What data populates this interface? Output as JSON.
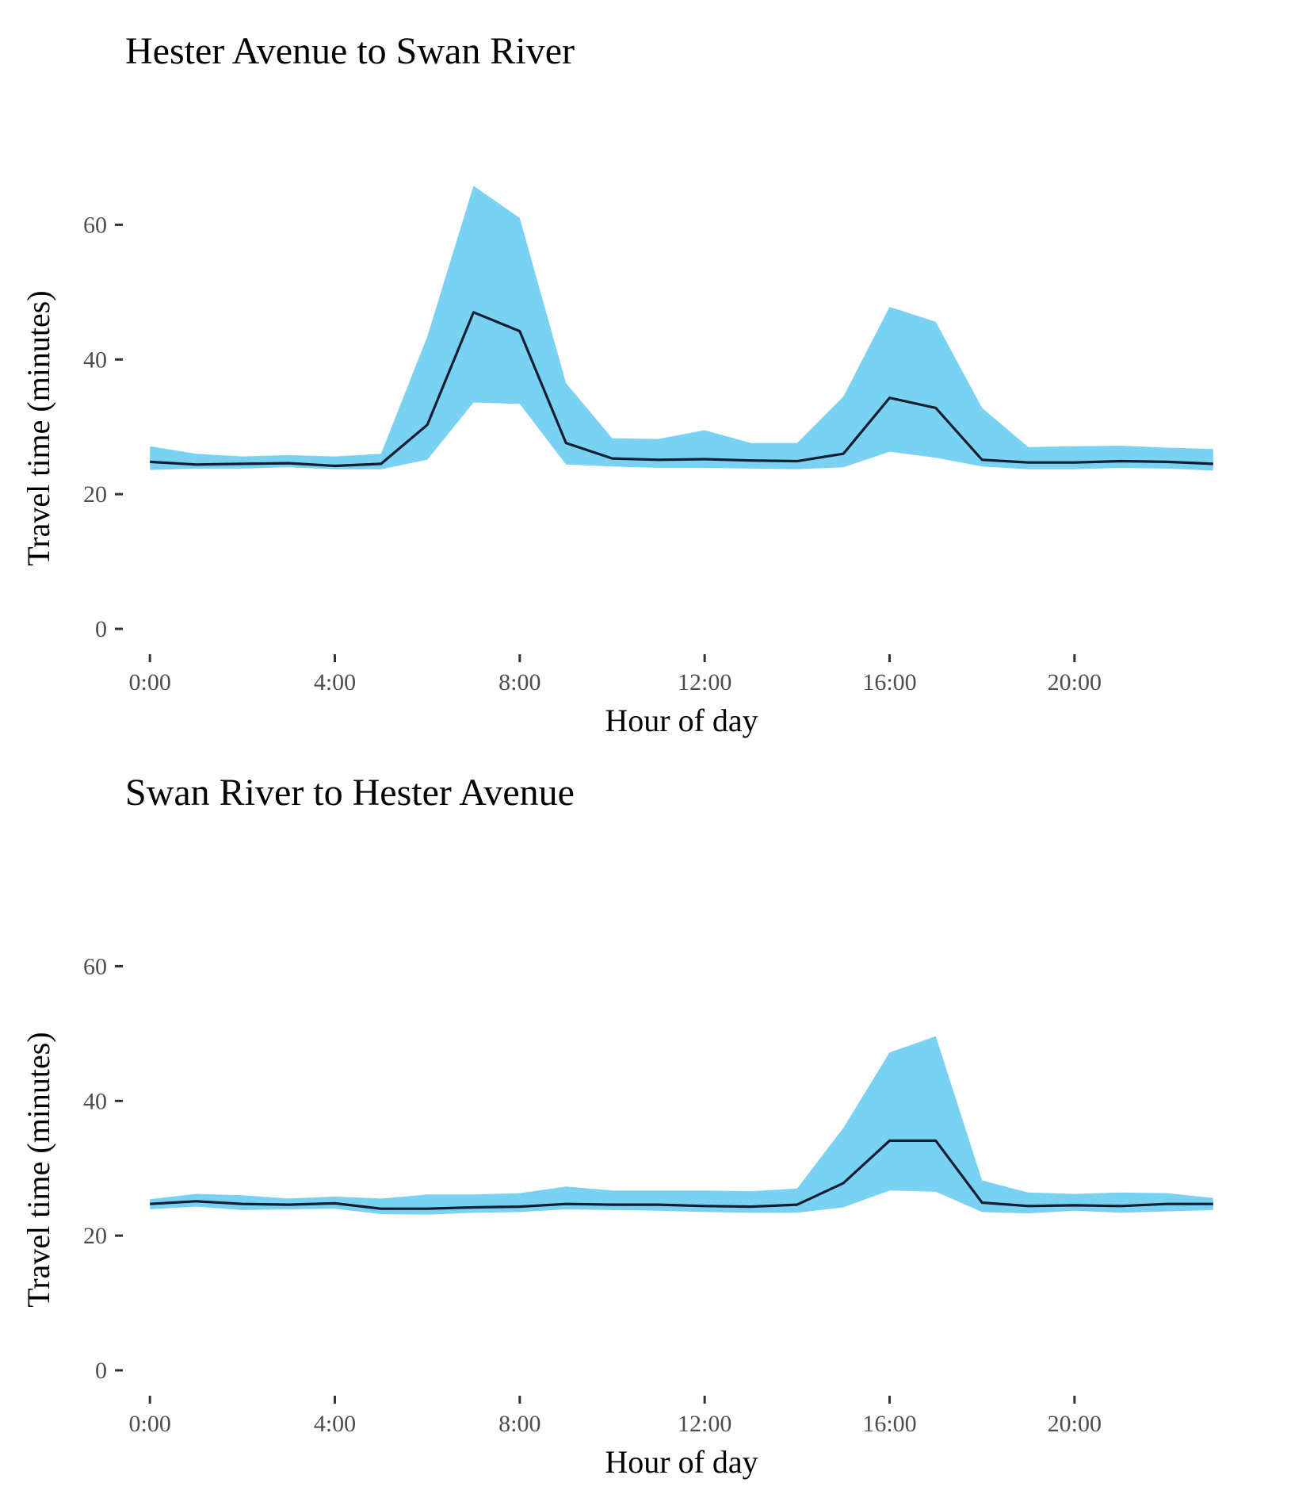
{
  "chart_data": [
    {
      "type": "area",
      "title": "Hester Avenue to Swan River",
      "xlabel": "Hour of day",
      "ylabel": "Travel time (minutes)",
      "xlim": [
        -0.5,
        23.5
      ],
      "ylim": [
        -2,
        71
      ],
      "x_ticks": [
        0,
        4,
        8,
        12,
        16,
        20
      ],
      "x_tick_labels": [
        "0:00",
        "4:00",
        "8:00",
        "12:00",
        "16:00",
        "20:00"
      ],
      "y_ticks": [
        0,
        20,
        40,
        60
      ],
      "y_tick_labels": [
        "0",
        "20",
        "40",
        "60"
      ],
      "grid": false,
      "legend": "none",
      "colors": {
        "ribbon": "#7AD2F3",
        "line": "#111D33"
      },
      "x": [
        0,
        1,
        2,
        3,
        4,
        5,
        6,
        7,
        8,
        9,
        10,
        11,
        12,
        13,
        14,
        15,
        16,
        17,
        18,
        19,
        20,
        21,
        22,
        23
      ],
      "series": [
        {
          "role": "median",
          "values": [
            24.8,
            24.4,
            24.5,
            24.6,
            24.2,
            24.5,
            30.3,
            47.0,
            44.2,
            27.6,
            25.3,
            25.1,
            25.2,
            25.0,
            24.9,
            26.0,
            34.3,
            32.8,
            25.1,
            24.7,
            24.7,
            24.9,
            24.8,
            24.5
          ]
        },
        {
          "role": "upper",
          "values": [
            27.1,
            26.0,
            25.6,
            25.8,
            25.6,
            26.0,
            43.4,
            65.8,
            61.0,
            36.5,
            28.3,
            28.2,
            29.5,
            27.6,
            27.6,
            34.5,
            47.8,
            45.6,
            32.8,
            27.0,
            27.1,
            27.2,
            26.9,
            26.7
          ]
        },
        {
          "role": "lower",
          "values": [
            23.6,
            23.8,
            23.8,
            24.0,
            23.7,
            23.7,
            25.1,
            33.6,
            33.4,
            24.4,
            24.1,
            23.9,
            23.9,
            23.8,
            23.7,
            24.0,
            26.3,
            25.4,
            24.1,
            23.7,
            23.7,
            23.9,
            23.8,
            23.5
          ]
        }
      ]
    },
    {
      "type": "area",
      "title": "Swan River to Hester Avenue",
      "xlabel": "Hour of day",
      "ylabel": "Travel time (minutes)",
      "xlim": [
        -0.5,
        23.5
      ],
      "ylim": [
        -2,
        71
      ],
      "x_ticks": [
        0,
        4,
        8,
        12,
        16,
        20
      ],
      "x_tick_labels": [
        "0:00",
        "4:00",
        "8:00",
        "12:00",
        "16:00",
        "20:00"
      ],
      "y_ticks": [
        0,
        20,
        40,
        60
      ],
      "y_tick_labels": [
        "0",
        "20",
        "40",
        "60"
      ],
      "grid": false,
      "legend": "none",
      "colors": {
        "ribbon": "#7AD2F3",
        "line": "#111D33"
      },
      "x": [
        0,
        1,
        2,
        3,
        4,
        5,
        6,
        7,
        8,
        9,
        10,
        11,
        12,
        13,
        14,
        15,
        16,
        17,
        18,
        19,
        20,
        21,
        22,
        23
      ],
      "series": [
        {
          "role": "median",
          "values": [
            24.7,
            25.1,
            24.7,
            24.6,
            24.8,
            24.0,
            24.0,
            24.2,
            24.3,
            24.7,
            24.6,
            24.6,
            24.4,
            24.3,
            24.6,
            27.8,
            34.1,
            34.1,
            24.9,
            24.4,
            24.5,
            24.4,
            24.7,
            24.7
          ]
        },
        {
          "role": "upper",
          "values": [
            25.4,
            26.2,
            26.0,
            25.5,
            25.8,
            25.5,
            26.1,
            26.1,
            26.3,
            27.3,
            26.7,
            26.7,
            26.7,
            26.6,
            27.0,
            36.0,
            47.2,
            49.6,
            28.2,
            26.4,
            26.2,
            26.4,
            26.3,
            25.6
          ]
        },
        {
          "role": "lower",
          "values": [
            23.9,
            24.3,
            23.8,
            23.9,
            24.0,
            23.2,
            23.1,
            23.4,
            23.5,
            23.9,
            23.8,
            23.7,
            23.5,
            23.4,
            23.4,
            24.2,
            26.7,
            26.5,
            23.5,
            23.3,
            23.7,
            23.4,
            23.6,
            23.8
          ]
        }
      ]
    }
  ]
}
